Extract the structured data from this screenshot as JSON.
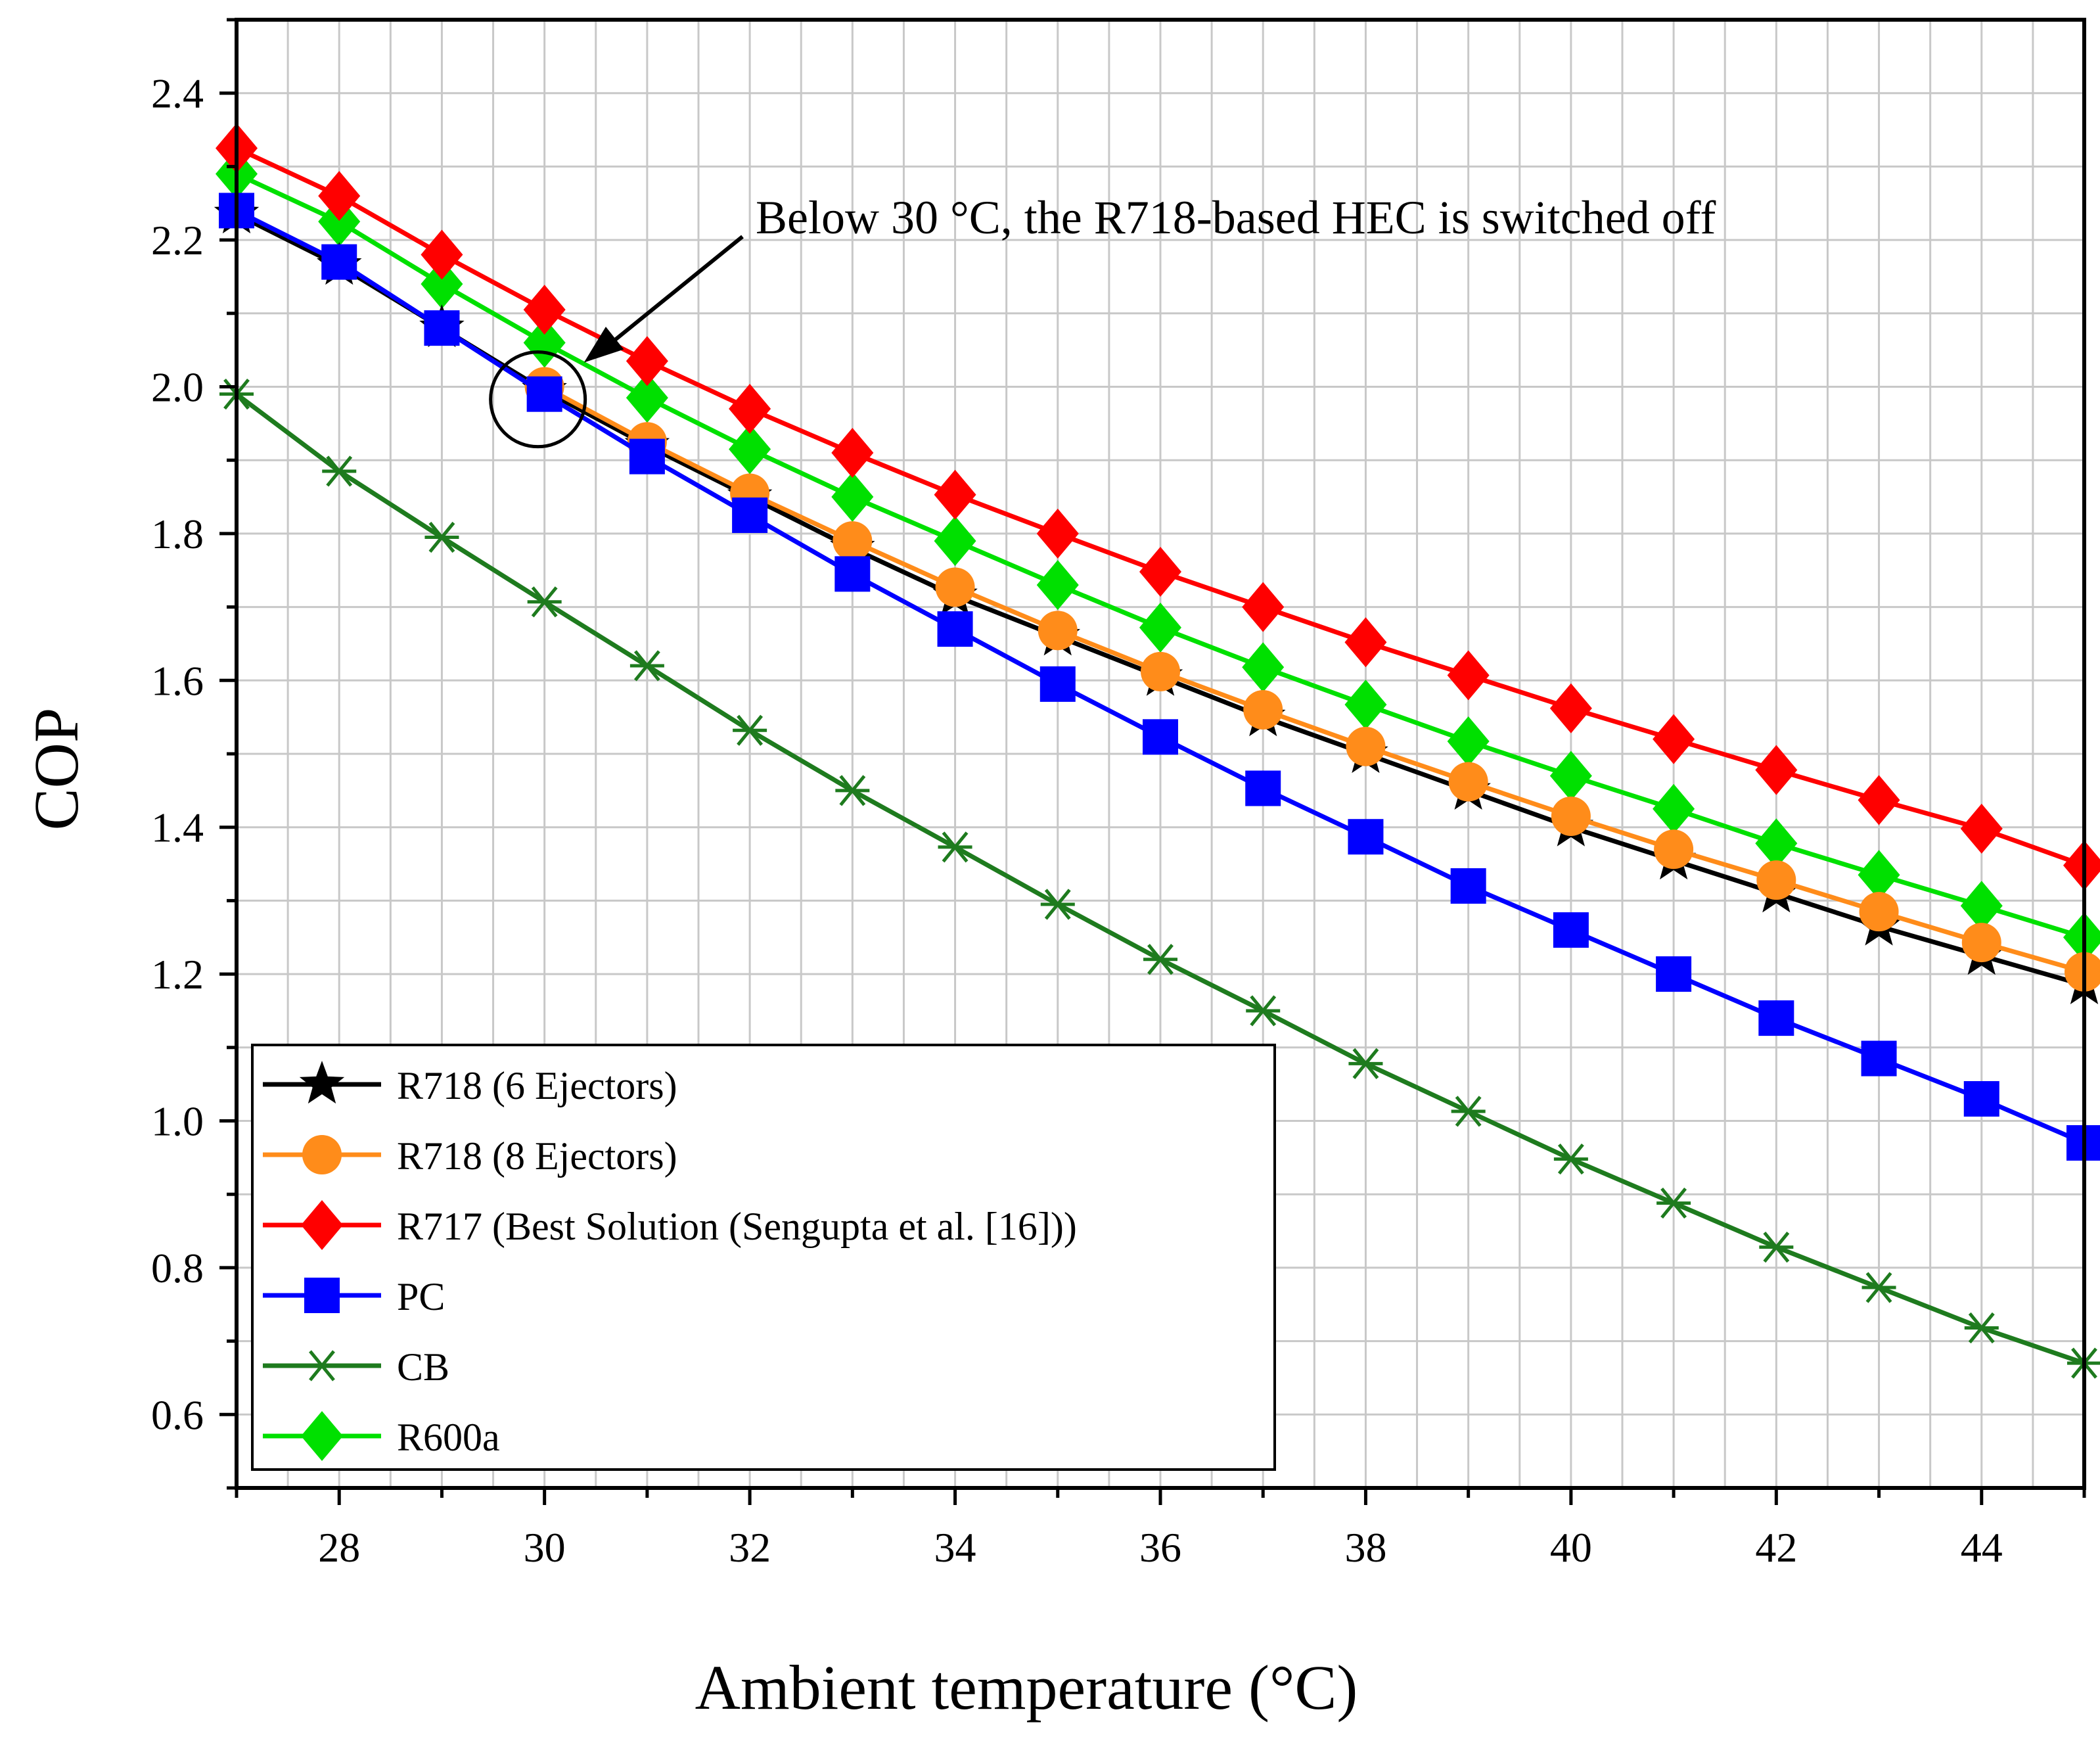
{
  "chart_data": {
    "type": "line",
    "title": "",
    "xlabel": "Ambient temperature (°C)",
    "ylabel": "COP",
    "xlim": [
      27,
      45
    ],
    "ylim": [
      0.5,
      2.5
    ],
    "x_ticks": [
      28,
      30,
      32,
      34,
      36,
      38,
      40,
      42,
      44
    ],
    "y_ticks": [
      0.6,
      0.8,
      1.0,
      1.2,
      1.4,
      1.6,
      1.8,
      2.0,
      2.2,
      2.4
    ],
    "x_tick_labels": [
      "28",
      "30",
      "32",
      "34",
      "36",
      "38",
      "40",
      "42",
      "44"
    ],
    "y_tick_labels": [
      "0.6",
      "0.8",
      "1.0",
      "1.2",
      "1.4",
      "1.6",
      "1.8",
      "2.0",
      "2.2",
      "2.4"
    ],
    "grid": true,
    "legend_position": "bottom-left",
    "x": [
      27,
      28,
      29,
      30,
      31,
      32,
      33,
      34,
      35,
      36,
      37,
      38,
      39,
      40,
      41,
      42,
      43,
      44,
      45
    ],
    "series": [
      {
        "name": "R718 (6 Ejectors)",
        "color": "#000000",
        "marker": "star",
        "values": [
          2.235,
          2.165,
          2.08,
          1.995,
          1.92,
          1.85,
          1.78,
          1.715,
          1.66,
          1.605,
          1.55,
          1.5,
          1.45,
          1.4,
          1.355,
          1.31,
          1.265,
          1.225,
          1.185
        ]
      },
      {
        "name": "R718 (8 Ejectors)",
        "color": "#ff8c1a",
        "marker": "circle",
        "values": [
          null,
          null,
          null,
          2.0,
          1.925,
          1.855,
          1.79,
          1.727,
          1.668,
          1.612,
          1.56,
          1.51,
          1.462,
          1.415,
          1.37,
          1.328,
          1.285,
          1.243,
          1.203
        ]
      },
      {
        "name": "R717 (Best Solution (Sengupta et al. [16]))",
        "color": "#ff0000",
        "marker": "diamond",
        "values": [
          2.325,
          2.26,
          2.18,
          2.105,
          2.035,
          1.97,
          1.91,
          1.853,
          1.8,
          1.748,
          1.7,
          1.652,
          1.607,
          1.562,
          1.52,
          1.478,
          1.437,
          1.398,
          1.348
        ]
      },
      {
        "name": "PC",
        "color": "#0000ff",
        "marker": "square",
        "values": [
          2.24,
          2.17,
          2.08,
          1.99,
          1.905,
          1.825,
          1.745,
          1.67,
          1.595,
          1.523,
          1.453,
          1.387,
          1.32,
          1.26,
          1.2,
          1.14,
          1.085,
          1.03,
          0.97
        ]
      },
      {
        "name": "CB",
        "color": "#1e7b1e",
        "marker": "asterisk",
        "values": [
          1.99,
          1.885,
          1.795,
          1.707,
          1.62,
          1.532,
          1.45,
          1.373,
          1.295,
          1.22,
          1.15,
          1.078,
          1.013,
          0.948,
          0.888,
          0.828,
          0.773,
          0.718,
          0.67
        ]
      },
      {
        "name": "R600a",
        "color": "#00e000",
        "marker": "diamond",
        "values": [
          2.29,
          2.225,
          2.14,
          2.06,
          1.985,
          1.915,
          1.85,
          1.79,
          1.73,
          1.672,
          1.618,
          1.567,
          1.517,
          1.47,
          1.425,
          1.378,
          1.335,
          1.293,
          1.25
        ]
      }
    ],
    "annotations": [
      {
        "text": "Below 30 °C, the R718-based HEC is switched off",
        "target_x": 30,
        "target_y": 1.99
      }
    ]
  }
}
